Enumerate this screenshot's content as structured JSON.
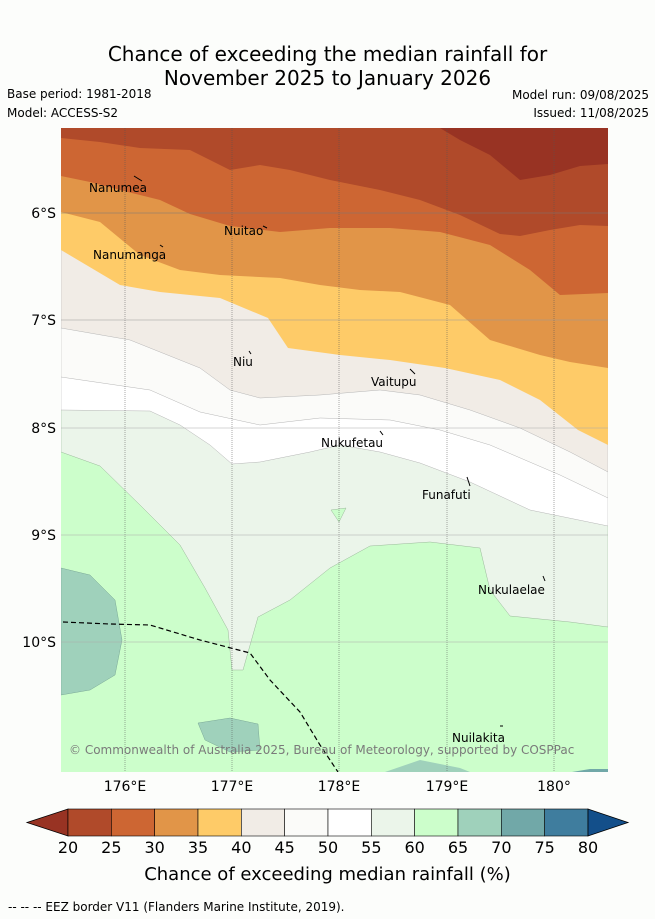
{
  "title_line1": "Chance of exceeding the median rainfall for",
  "title_line2": "November 2025 to January 2026",
  "base_period": "Base period: 1981-2018",
  "model": "Model: ACCESS-S2",
  "model_run": "Model run: 09/08/2025",
  "issued": "Issued: 11/08/2025",
  "copyright": "© Commonwealth of Australia 2025, Bureau of Meteorology, supported by COSPPac",
  "lon_ticks": [
    "176°E",
    "177°E",
    "178°E",
    "179°E",
    "180°"
  ],
  "lat_ticks": [
    "6°S",
    "7°S",
    "8°S",
    "9°S",
    "10°S"
  ],
  "places": [
    {
      "name": "Nanumea"
    },
    {
      "name": "Nuitao"
    },
    {
      "name": "Nanumanga"
    },
    {
      "name": "Niu"
    },
    {
      "name": "Vaitupu"
    },
    {
      "name": "Nukufetau"
    },
    {
      "name": "Funafuti"
    },
    {
      "name": "Nukulaelae"
    },
    {
      "name": "Nuilakita"
    }
  ],
  "colorbar": {
    "labels": [
      "20",
      "25",
      "30",
      "35",
      "40",
      "45",
      "50",
      "55",
      "60",
      "65",
      "70",
      "75",
      "80"
    ],
    "colors": [
      "#b04a2a",
      "#cd6633",
      "#e19548",
      "#fecb68",
      "#f1ece6",
      "#fbfbf9",
      "#ffffff",
      "#ebf5ea",
      "#ccfecb",
      "#9fd1bb",
      "#71a8a8",
      "#3f7d9e"
    ],
    "under_color": "#983323",
    "over_color": "#134f8a",
    "title": "Chance of exceeding median rainfall (%)"
  },
  "legend_eez": "-- -- -- EEZ border V11 (Flanders Marine Institute, 2019)."
}
